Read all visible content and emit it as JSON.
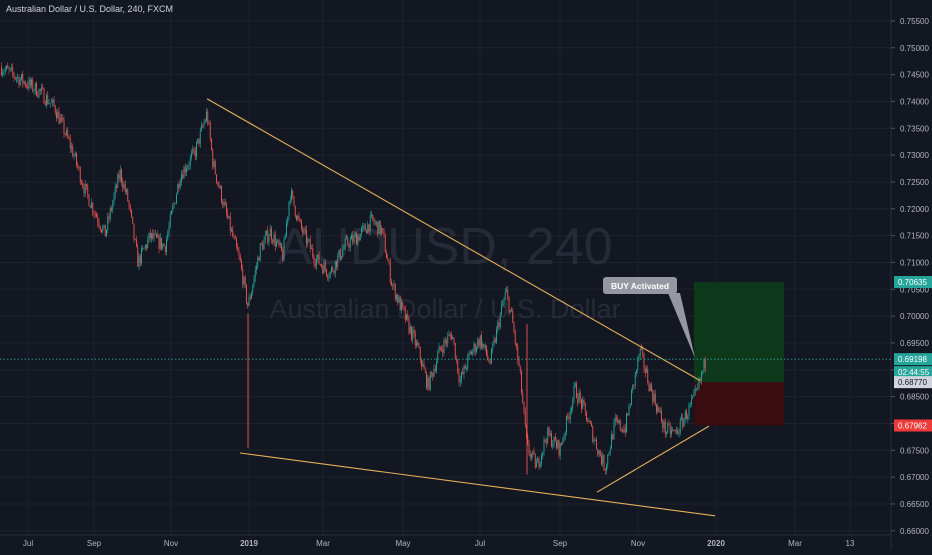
{
  "header": {
    "title": "Australian Dollar / U.S. Dollar, 240, FXCM"
  },
  "watermark": {
    "symbol": "AUDUSD, 240",
    "description": "Australian Dollar / U.S. Dollar"
  },
  "annotation": {
    "label": "BUY Activated"
  },
  "colors": {
    "background": "#131722",
    "grid": "#1e222d",
    "up_candle": "#26a69a",
    "down_candle": "#ef5350",
    "trendline": "#e3b05b",
    "target_zone": "#0e3a1a",
    "stop_zone": "#3b0c10",
    "price_line": "#26a69a",
    "axis_text": "#b2b5be"
  },
  "chart_data": {
    "type": "candlestick",
    "title": "Australian Dollar / U.S. Dollar, 240, FXCM",
    "x_ticks": [
      "Jul",
      "Sep",
      "Nov",
      "2019",
      "Mar",
      "May",
      "Jul",
      "Sep",
      "Nov",
      "2020",
      "Mar",
      "13"
    ],
    "y_ticks": [
      "0.75500",
      "0.75000",
      "0.74500",
      "0.74000",
      "0.73500",
      "0.73000",
      "0.72500",
      "0.72000",
      "0.71500",
      "0.71000",
      "0.70500",
      "0.70000",
      "0.69500",
      "0.69000",
      "0.68500",
      "0.68000",
      "0.67500",
      "0.67000",
      "0.66500",
      "0.66000"
    ],
    "ylim": [
      0.6595,
      0.7575
    ],
    "path_x": [
      0,
      40,
      55,
      72,
      85,
      105,
      120,
      128,
      138,
      150,
      165,
      180,
      195,
      207,
      213,
      225,
      240,
      248,
      260,
      270,
      283,
      290,
      300,
      315,
      330,
      345,
      360,
      372,
      382,
      392,
      405,
      418,
      428,
      440,
      452,
      460,
      470,
      480,
      490,
      500,
      506,
      512,
      520,
      527,
      537,
      547,
      560,
      575,
      585,
      598,
      605,
      615,
      625,
      640,
      650,
      665,
      676,
      690,
      697,
      706
    ],
    "path_y": [
      0.7465,
      0.7418,
      0.7388,
      0.731,
      0.7235,
      0.7152,
      0.7268,
      0.7215,
      0.71,
      0.7148,
      0.713,
      0.7262,
      0.7305,
      0.7378,
      0.7285,
      0.7198,
      0.71,
      0.7018,
      0.7125,
      0.7158,
      0.7112,
      0.7232,
      0.7168,
      0.7108,
      0.708,
      0.7132,
      0.7152,
      0.7178,
      0.7158,
      0.706,
      0.6998,
      0.6938,
      0.687,
      0.6938,
      0.6968,
      0.6878,
      0.6928,
      0.6958,
      0.6912,
      0.7,
      0.7045,
      0.6995,
      0.689,
      0.6755,
      0.672,
      0.678,
      0.6752,
      0.6865,
      0.682,
      0.6752,
      0.6718,
      0.68,
      0.679,
      0.6935,
      0.6868,
      0.6788,
      0.6782,
      0.683,
      0.6858,
      0.692
    ],
    "current_price": 0.69198,
    "current_time_label": "02:44:55",
    "target_price": 0.70635,
    "entry_price": 0.6877,
    "stop_price": 0.67962,
    "price_labels": [
      "0.70635",
      "0.69198",
      "02:44:55",
      "0.68770",
      "0.67962"
    ],
    "trendlines": [
      {
        "name": "upper-resistance",
        "x1_frac": 0,
        "y1": 0.7405,
        "x2_frac": 1,
        "y2": 0.688
      },
      {
        "name": "lower-support",
        "y1": 0.6745,
        "y2": 0.6628
      },
      {
        "name": "rising-support",
        "y1": 0.6672,
        "y2": 0.6795
      }
    ],
    "grid": true
  }
}
